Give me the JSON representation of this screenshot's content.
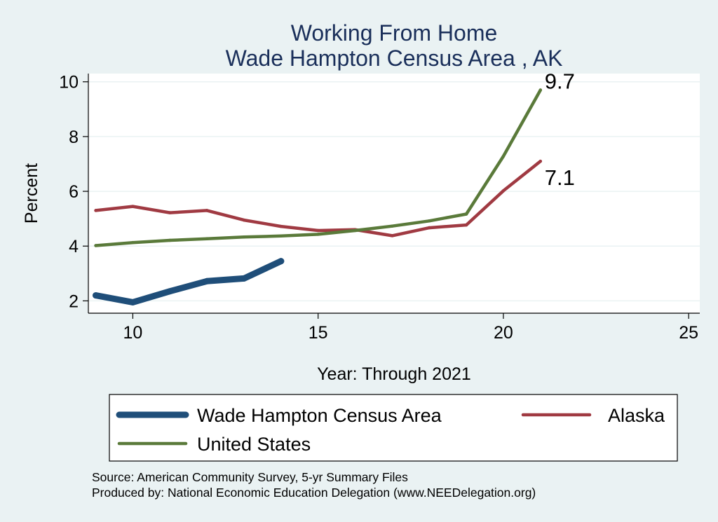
{
  "chart_data": {
    "type": "line",
    "title": [
      "Working From Home",
      "Wade Hampton Census Area , AK"
    ],
    "xlabel": "Year: Through 2021",
    "ylabel": "Percent",
    "xlim": [
      8.8,
      25.3
    ],
    "ylim": [
      1.55,
      10.3
    ],
    "xticks": [
      10,
      15,
      20,
      25
    ],
    "yticks": [
      2,
      4,
      6,
      8,
      10
    ],
    "grid": "horizontal",
    "legend_placement": "bottom",
    "series": [
      {
        "name": "Wade Hampton Census Area",
        "color": "#1f4e79",
        "x": [
          9,
          10,
          11,
          12,
          13,
          14
        ],
        "y": [
          2.2,
          1.95,
          2.35,
          2.72,
          2.82,
          3.45
        ]
      },
      {
        "name": "Alaska",
        "color": "#a03a42",
        "x": [
          9,
          10,
          11,
          12,
          13,
          14,
          15,
          16,
          17,
          18,
          19,
          20,
          21
        ],
        "y": [
          5.3,
          5.45,
          5.22,
          5.3,
          4.95,
          4.72,
          4.57,
          4.6,
          4.38,
          4.67,
          4.77,
          6.02,
          7.1
        ],
        "end_label": "7.1"
      },
      {
        "name": "United States",
        "color": "#5a7a3a",
        "x": [
          9,
          10,
          11,
          12,
          13,
          14,
          15,
          16,
          17,
          18,
          19,
          20,
          21
        ],
        "y": [
          4.02,
          4.13,
          4.21,
          4.27,
          4.33,
          4.37,
          4.43,
          4.57,
          4.73,
          4.92,
          5.17,
          7.28,
          9.7
        ],
        "end_label": "9.7"
      }
    ],
    "source_lines": [
      "Source: American Community Survey, 5-yr Summary Files",
      "Produced by: National Economic Education Delegation (www.NEEDelegation.org)"
    ]
  }
}
